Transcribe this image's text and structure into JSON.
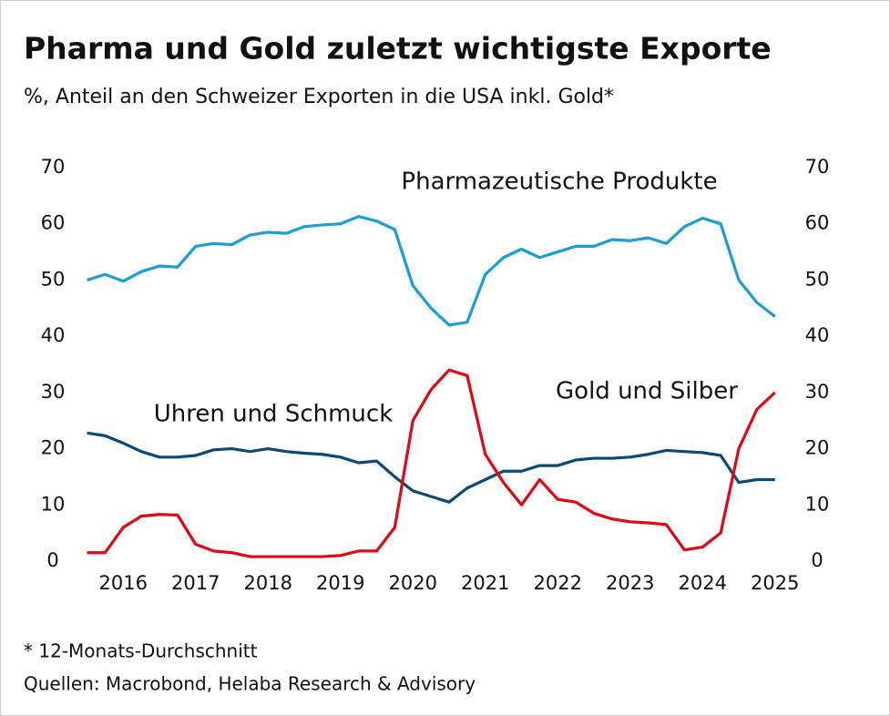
{
  "chart_data": {
    "type": "line",
    "title": "Pharma und Gold zuletzt wichtigste Exporte",
    "subtitle": "%, Anteil an den Schweizer Exporten in die USA inkl. Gold*",
    "footnote": "* 12-Monats-Durchschnitt",
    "source": "Quellen: Macrobond, Helaba Research & Advisory",
    "x": [
      2016.0,
      2016.25,
      2016.5,
      2016.75,
      2017.0,
      2017.25,
      2017.5,
      2017.75,
      2018.0,
      2018.25,
      2018.5,
      2018.75,
      2019.0,
      2019.25,
      2019.5,
      2019.75,
      2020.0,
      2020.25,
      2020.5,
      2020.75,
      2021.0,
      2021.25,
      2021.5,
      2021.75,
      2022.0,
      2022.25,
      2022.5,
      2022.75,
      2023.0,
      2023.25,
      2023.5,
      2023.75,
      2024.0,
      2024.25,
      2024.5,
      2024.75,
      2025.0,
      2025.25,
      2025.5
    ],
    "series": [
      {
        "name": "Pharmazeutische Produkte",
        "color": "#1a9edb",
        "values": [
          50,
          51,
          49.8,
          51.5,
          52.5,
          52.3,
          56,
          56.5,
          56.3,
          58,
          58.5,
          58.3,
          59.5,
          59.8,
          60,
          61.3,
          60.5,
          59,
          49,
          45,
          42,
          42.5,
          51,
          54,
          55.5,
          54,
          55,
          56,
          56,
          57.2,
          57,
          57.5,
          56.5,
          59.5,
          61,
          60,
          50,
          46,
          43.5
        ]
      },
      {
        "name": "Uhren und Schmuck",
        "color": "#0b4a78",
        "values": [
          22.8,
          22.3,
          21,
          19.5,
          18.5,
          18.5,
          18.8,
          19.8,
          20,
          19.5,
          20,
          19.5,
          19.2,
          19,
          18.5,
          17.5,
          17.8,
          15,
          12.5,
          11.5,
          10.5,
          13,
          14.5,
          16,
          16,
          17,
          17,
          18,
          18.3,
          18.3,
          18.5,
          19,
          19.7,
          19.5,
          19.3,
          18.8,
          14,
          14.5,
          14.5
        ]
      },
      {
        "name": "Gold und Silber",
        "color": "#e30613",
        "values": [
          1.5,
          1.5,
          6,
          8,
          8.3,
          8.2,
          3,
          1.8,
          1.5,
          0.8,
          0.8,
          0.8,
          0.8,
          0.8,
          1.0,
          1.8,
          1.8,
          6,
          25,
          30.5,
          34,
          33,
          19,
          14,
          10,
          14.5,
          11,
          10.5,
          8.5,
          7.5,
          7,
          6.8,
          6.5,
          2,
          2.5,
          5,
          20,
          27,
          30
        ]
      }
    ],
    "xlim": [
      2016.0,
      2025.6
    ],
    "xticks": [
      {
        "value": 2016.5,
        "label": "2016"
      },
      {
        "value": 2017.5,
        "label": "2017"
      },
      {
        "value": 2018.5,
        "label": "2018"
      },
      {
        "value": 2019.5,
        "label": "2019"
      },
      {
        "value": 2020.5,
        "label": "2020"
      },
      {
        "value": 2021.5,
        "label": "2021"
      },
      {
        "value": 2022.5,
        "label": "2022"
      },
      {
        "value": 2023.5,
        "label": "2023"
      },
      {
        "value": 2024.5,
        "label": "2024"
      },
      {
        "value": 2025.5,
        "label": "2025"
      }
    ],
    "ylim": [
      0,
      70
    ],
    "yticks": [
      0,
      10,
      20,
      30,
      40,
      50,
      60,
      70
    ],
    "y2lim": [
      0,
      70
    ],
    "y2ticks": [
      0,
      10,
      20,
      30,
      40,
      50,
      60,
      70
    ],
    "grid": false
  }
}
